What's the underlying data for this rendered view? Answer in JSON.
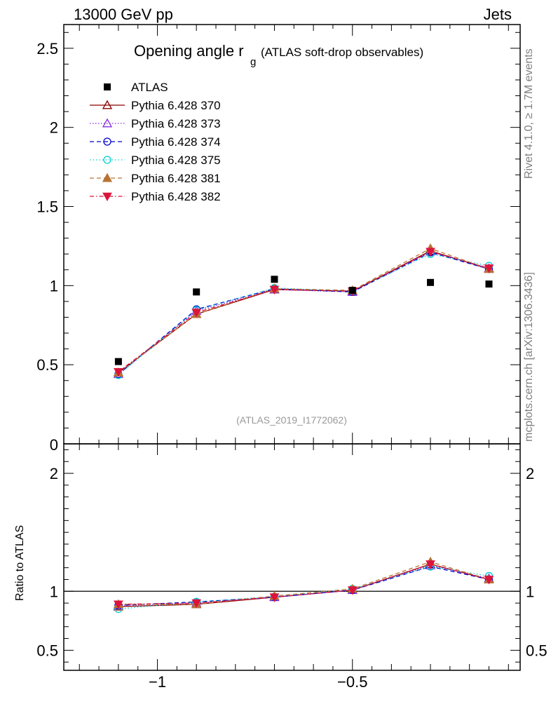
{
  "header": {
    "left": "13000 GeV pp",
    "right": "Jets",
    "side_rivet": "Rivet 4.1.0, ≥ 1.7M events",
    "side_mcplots": "mcplots.cern.ch [arXiv:1306.3436]"
  },
  "chart_data": {
    "type": "line",
    "title_main": "Opening angle r",
    "title_sub": "g",
    "title_rest": "(ATLAS soft-drop observables)",
    "watermark": "(ATLAS_2019_I1772062)",
    "x": [
      -1.1,
      -0.9,
      -0.7,
      -0.5,
      -0.3,
      -0.15
    ],
    "xlim": [
      -1.24,
      -0.07
    ],
    "x_ticks": [
      -1,
      -0.5
    ],
    "x_tick_labels": [
      "−1",
      "−0.5"
    ],
    "upper": {
      "ylim": [
        0,
        2.65
      ],
      "y_ticks": [
        0.5,
        1,
        1.5,
        2,
        2.5
      ],
      "y_tick_labels": [
        "0.5",
        "1",
        "1.5",
        "2",
        "2.5"
      ],
      "zero_label": "0"
    },
    "lower": {
      "ylabel": "Ratio to ATLAS",
      "ylim": [
        0.33,
        2.25
      ],
      "y_ticks": [
        0.5,
        1,
        2
      ],
      "y_tick_labels": [
        "0.5",
        "1",
        "2"
      ]
    },
    "data_series": {
      "name": "ATLAS",
      "values": [
        0.52,
        0.96,
        1.04,
        0.97,
        1.02,
        1.01
      ],
      "color": "#000000"
    },
    "series": [
      {
        "name": "Pythia 6.428 370",
        "values": [
          0.45,
          0.82,
          0.975,
          0.965,
          1.22,
          1.105
        ],
        "ratio": [
          0.87,
          0.89,
          0.95,
          1.01,
          1.23,
          1.1
        ],
        "color": "#8b0000",
        "marker": "triangle-open",
        "dash": ""
      },
      {
        "name": "Pythia 6.428 373",
        "values": [
          0.44,
          0.84,
          0.975,
          0.96,
          1.215,
          1.11
        ],
        "ratio": [
          0.88,
          0.9,
          0.95,
          1.01,
          1.22,
          1.11
        ],
        "color": "#8a2be2",
        "marker": "triangle-open",
        "dash": "1.5,2.5"
      },
      {
        "name": "Pythia 6.428 374",
        "values": [
          0.44,
          0.85,
          0.98,
          0.96,
          1.21,
          1.105
        ],
        "ratio": [
          0.88,
          0.91,
          0.95,
          1.01,
          1.21,
          1.1
        ],
        "color": "#0000cd",
        "marker": "circle-open",
        "dash": "6,4"
      },
      {
        "name": "Pythia 6.428 375",
        "values": [
          0.435,
          0.845,
          0.985,
          0.965,
          1.2,
          1.125
        ],
        "ratio": [
          0.85,
          0.91,
          0.955,
          1.02,
          1.21,
          1.13
        ],
        "color": "#00ced1",
        "marker": "circle-open",
        "dash": "1.5,3"
      },
      {
        "name": "Pythia 6.428 381",
        "values": [
          0.45,
          0.82,
          0.98,
          0.97,
          1.235,
          1.105
        ],
        "ratio": [
          0.89,
          0.89,
          0.96,
          1.02,
          1.25,
          1.1
        ],
        "color": "#b87333",
        "marker": "triangle-filled",
        "dash": "6,4"
      },
      {
        "name": "Pythia 6.428 382",
        "values": [
          0.455,
          0.83,
          0.975,
          0.965,
          1.215,
          1.11
        ],
        "ratio": [
          0.89,
          0.9,
          0.95,
          1.01,
          1.23,
          1.1
        ],
        "color": "#dc143c",
        "marker": "triangle-down-filled",
        "dash": "6,3,1.5,3"
      }
    ]
  }
}
